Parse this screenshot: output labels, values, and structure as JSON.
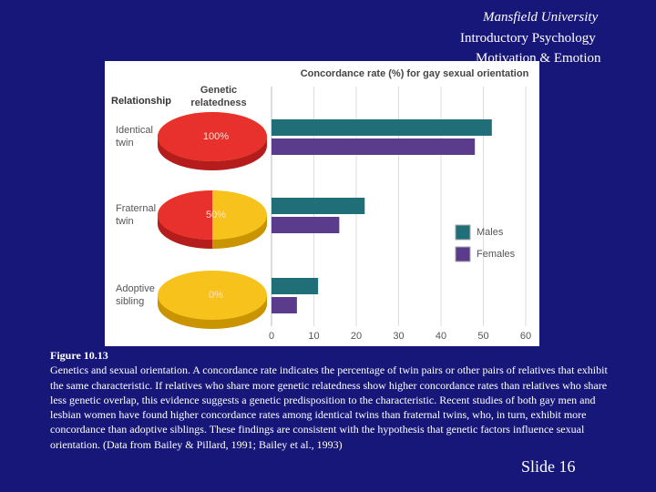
{
  "slide": {
    "header": [
      "Mansfield University",
      "Introductory Psychology",
      "Motivation & Emotion"
    ],
    "caption_title": "Figure 10.13",
    "caption": "Genetics and sexual orientation. A concordance rate indicates the percentage of twin pairs or other pairs of relatives that exhibit the same characteristic. If relatives who share more genetic relatedness show higher concordance rates than relatives who share less genetic overlap, this evidence suggests a genetic predisposition to the characteristic. Recent studies of both gay men and lesbian women have found higher concordance rates among identical twins than fraternal twins, who, in turn, exhibit more concordance than adoptive siblings. These findings are consistent with the hypothesis that genetic factors influence sexual orientation. (Data from Bailey & Pillard, 1991; Bailey et al., 1993)",
    "slide_number": "Slide 16"
  },
  "chart_data": {
    "type": "bar",
    "orientation": "horizontal",
    "title": "Concordance rate (%) for gay sexual orientation",
    "category_header": "Relationship",
    "relatedness_header": "Genetic relatedness",
    "categories": [
      "Identical twin",
      "Fraternal twin",
      "Adoptive sibling"
    ],
    "relatedness": {
      "values": [
        100,
        50,
        0
      ],
      "value_labels": [
        "100%",
        "50%",
        "0%"
      ]
    },
    "series": [
      {
        "name": "Males",
        "color": "#1f6e78",
        "values": [
          52,
          22,
          11
        ]
      },
      {
        "name": "Females",
        "color": "#5b3c8c",
        "values": [
          48,
          16,
          6
        ]
      }
    ],
    "xlim": [
      0,
      60
    ],
    "xticks": [
      0,
      10,
      20,
      30,
      40,
      50,
      60
    ],
    "grid": true,
    "legend": "right"
  }
}
